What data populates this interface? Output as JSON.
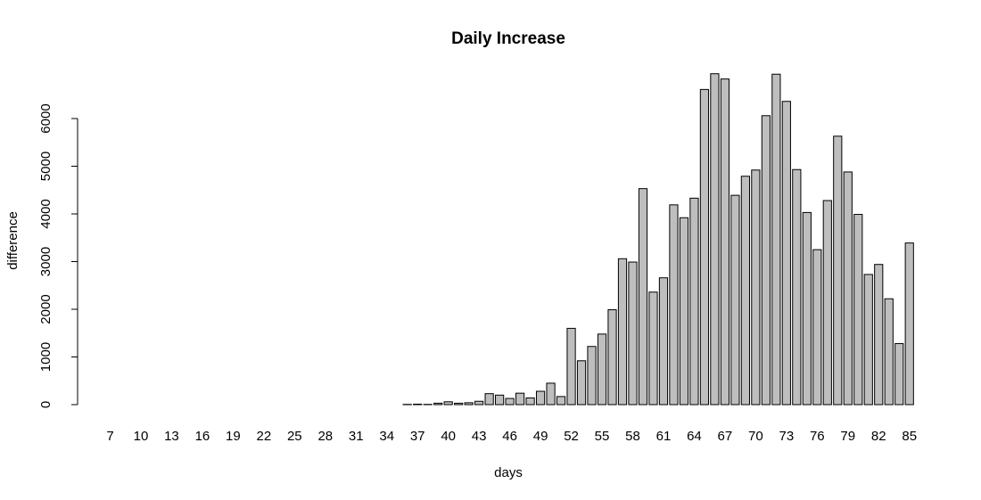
{
  "chart_data": {
    "type": "bar",
    "title": "Daily Increase",
    "xlabel": "days",
    "ylabel": "difference",
    "ylim": [
      0,
      6950
    ],
    "yticks": [
      0,
      1000,
      2000,
      3000,
      4000,
      5000,
      6000
    ],
    "categories": [
      "7",
      "8",
      "9",
      "10",
      "11",
      "12",
      "13",
      "14",
      "15",
      "16",
      "17",
      "18",
      "19",
      "20",
      "21",
      "22",
      "23",
      "24",
      "25",
      "26",
      "27",
      "28",
      "29",
      "30",
      "31",
      "32",
      "33",
      "34",
      "35",
      "36",
      "37",
      "38",
      "39",
      "40",
      "41",
      "42",
      "43",
      "44",
      "45",
      "46",
      "47",
      "48",
      "49",
      "50",
      "51",
      "52",
      "53",
      "54",
      "55",
      "56",
      "57",
      "58",
      "59",
      "60",
      "61",
      "62",
      "63",
      "64",
      "65",
      "66",
      "67",
      "68",
      "69",
      "70",
      "71",
      "72",
      "73",
      "74",
      "75",
      "76",
      "77",
      "78",
      "79",
      "80",
      "81",
      "82",
      "83",
      "84",
      "85"
    ],
    "shown_x_labels": [
      "7",
      "10",
      "13",
      "16",
      "19",
      "22",
      "25",
      "28",
      "31",
      "34",
      "37",
      "40",
      "43",
      "46",
      "49",
      "52",
      "55",
      "58",
      "61",
      "64",
      "67",
      "70",
      "73",
      "76",
      "79",
      "82",
      "85"
    ],
    "values": [
      0,
      0,
      0,
      0,
      0,
      0,
      0,
      0,
      0,
      0,
      0,
      0,
      0,
      0,
      0,
      0,
      0,
      0,
      0,
      0,
      0,
      0,
      0,
      0,
      0,
      0,
      0,
      0,
      0,
      5,
      10,
      5,
      30,
      60,
      30,
      40,
      70,
      230,
      200,
      130,
      240,
      140,
      280,
      450,
      170,
      1600,
      920,
      1220,
      1480,
      1990,
      3060,
      2990,
      4530,
      2360,
      2660,
      4190,
      3920,
      4330,
      6610,
      6940,
      6830,
      4390,
      4790,
      4920,
      6060,
      6930,
      6360,
      4930,
      4030,
      3250,
      4280,
      5630,
      4880,
      3990,
      2730,
      2940,
      2220,
      1280,
      3390
    ]
  }
}
